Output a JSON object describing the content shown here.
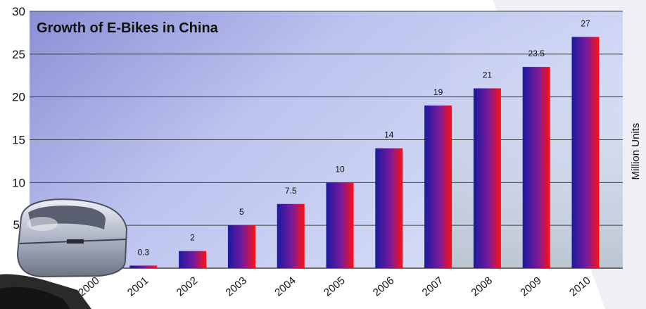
{
  "chart_data": {
    "type": "bar",
    "title": "Growth of E-Bikes in China",
    "xlabel": "",
    "ylabel": "Million Units",
    "categories": [
      "2000",
      "2001",
      "2002",
      "2003",
      "2004",
      "2005",
      "2006",
      "2007",
      "2008",
      "2009",
      "2010"
    ],
    "values": [
      0.1,
      0.3,
      2,
      5,
      7.5,
      10,
      14,
      19,
      21,
      23.5,
      27
    ],
    "data_labels": [
      "",
      "0.3",
      "2",
      "5",
      "7.5",
      "10",
      "14",
      "19",
      "21",
      "23.5",
      "27"
    ],
    "y_ticks": [
      "30",
      "25",
      "20",
      "15",
      "10"
    ],
    "ylim": [
      0,
      30
    ],
    "grid": true,
    "legend": "none",
    "colors": {
      "bar_left": "#1a1aa0",
      "bar_mid": "#7a1a9a",
      "bar_right": "#ff1010",
      "plot_bg_left": "#8e93d8",
      "plot_bg_right": "#cdd6f7",
      "grid": "#444444"
    }
  }
}
